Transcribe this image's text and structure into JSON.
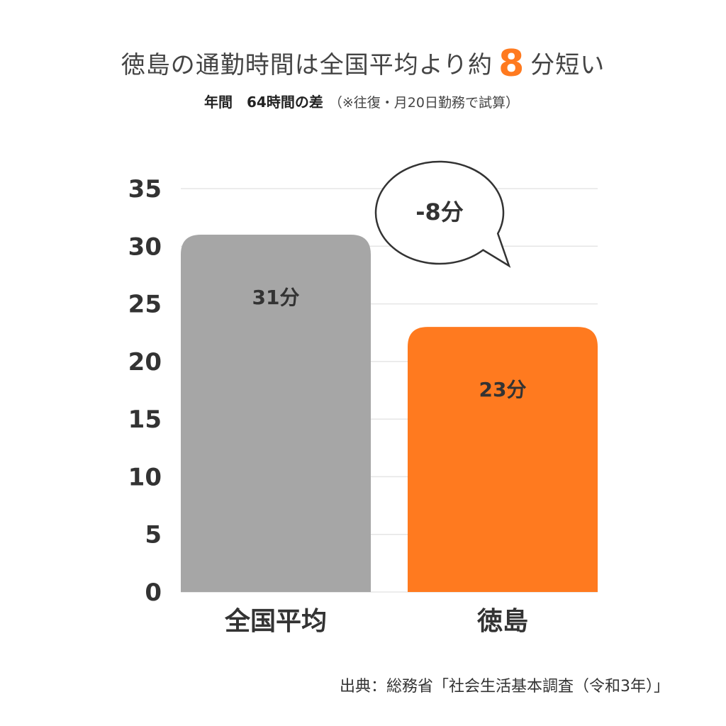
{
  "header": {
    "title_pre": "徳島の通勤時間は全国平均より約",
    "title_highlight": "8",
    "title_post": "分短い",
    "subtitle_strong": "年間　64時間の差",
    "subtitle_note": "（※往復・月20日勤務で試算）"
  },
  "source": "出典：総務省「社会生活基本調査（令和3年）」",
  "colors": {
    "accent": "#ff7a1f",
    "gray_bar": "#a6a6a6",
    "grid": "#e5e5e5"
  },
  "chart_data": {
    "type": "bar",
    "categories": [
      "全国平均",
      "徳島"
    ],
    "values": [
      31,
      23
    ],
    "value_labels": [
      "31分",
      "23分"
    ],
    "bar_colors": [
      "#a6a6a6",
      "#ff7a1f"
    ],
    "ylim": [
      0,
      35
    ],
    "yticks": [
      0,
      5,
      10,
      15,
      20,
      25,
      30,
      35
    ],
    "grid": true,
    "annotation": "-8分"
  }
}
